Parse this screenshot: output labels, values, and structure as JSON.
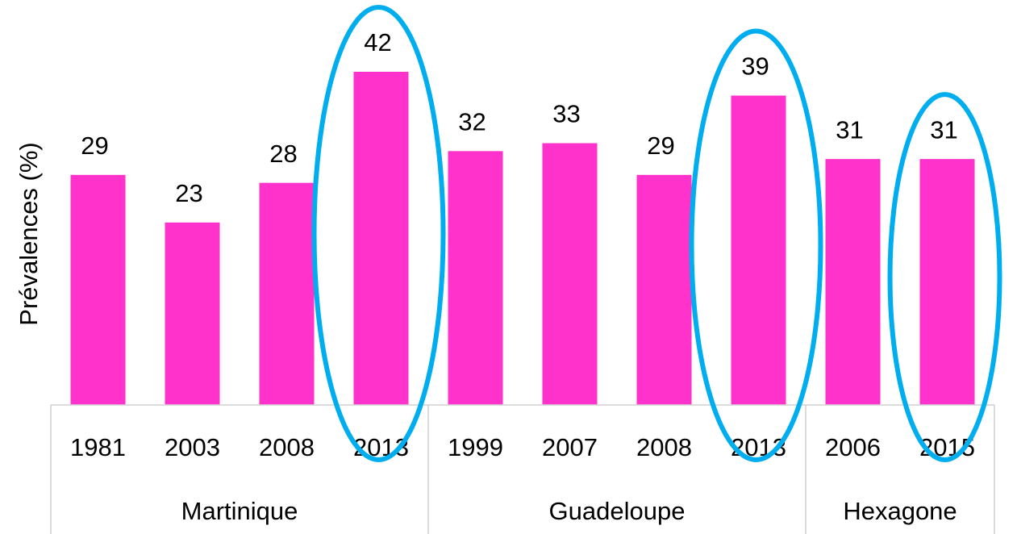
{
  "chart_data": {
    "type": "bar",
    "y_label": "Prévalences (%)",
    "categories": [
      "1981",
      "2003",
      "2008",
      "2013",
      "1999",
      "2007",
      "2008",
      "2013",
      "2006",
      "2015"
    ],
    "values": [
      29,
      23,
      28,
      42,
      32,
      33,
      29,
      39,
      31,
      31
    ],
    "color": "#ff33cc",
    "groups": [
      {
        "label": "Martinique",
        "count": 4
      },
      {
        "label": "Guadeloupe",
        "count": 4
      },
      {
        "label": "Hexagone",
        "count": 2
      }
    ],
    "highlight": [
      3,
      7,
      9
    ],
    "highlight_color": "#00aeef",
    "ylim": [
      0,
      42
    ]
  }
}
